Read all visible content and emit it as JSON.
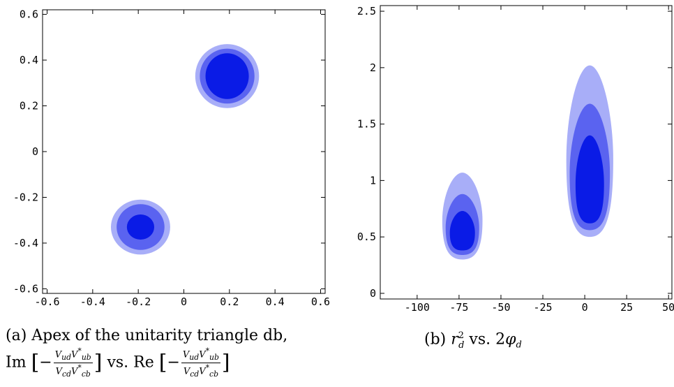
{
  "chart_data": [
    {
      "type": "heatmap",
      "panel": "a",
      "xlim": [
        -0.62,
        0.62
      ],
      "ylim": [
        -0.62,
        0.62
      ],
      "x_ticks": [
        "-0.6",
        "-0.4",
        "-0.2",
        "0",
        "0.2",
        "0.4",
        "0.6"
      ],
      "x_tick_values": [
        -0.6,
        -0.4,
        -0.2,
        0,
        0.2,
        0.4,
        0.6
      ],
      "y_ticks": [
        "-0.6",
        "-0.4",
        "-0.2",
        "0",
        "0.2",
        "0.4",
        "0.6"
      ],
      "y_tick_values": [
        -0.6,
        -0.4,
        -0.2,
        0,
        0.2,
        0.4,
        0.6
      ],
      "regions": [
        {
          "level": "outer",
          "color": "#a8aef8",
          "cx": 0.19,
          "cy": 0.33,
          "rx": 0.14,
          "ry": 0.14
        },
        {
          "level": "middle",
          "color": "#5a63f0",
          "cx": 0.19,
          "cy": 0.33,
          "rx": 0.12,
          "ry": 0.12
        },
        {
          "level": "inner",
          "color": "#0a1be6",
          "cx": 0.19,
          "cy": 0.33,
          "rx": 0.095,
          "ry": 0.1
        },
        {
          "level": "outer",
          "color": "#a8aef8",
          "cx": -0.19,
          "cy": -0.33,
          "rx": 0.13,
          "ry": 0.12
        },
        {
          "level": "middle",
          "color": "#5a63f0",
          "cx": -0.19,
          "cy": -0.33,
          "rx": 0.105,
          "ry": 0.1
        },
        {
          "level": "inner",
          "color": "#0a1be6",
          "cx": -0.19,
          "cy": -0.33,
          "rx": 0.06,
          "ry": 0.055
        }
      ],
      "grid": false
    },
    {
      "type": "heatmap",
      "panel": "b",
      "xlim": [
        -122,
        52
      ],
      "ylim": [
        -0.05,
        2.55
      ],
      "x_ticks": [
        "-100",
        "-75",
        "-50",
        "-25",
        "0",
        "25",
        "50"
      ],
      "x_tick_values": [
        -100,
        -75,
        -50,
        -25,
        0,
        25,
        50
      ],
      "y_ticks": [
        "0",
        "0.5",
        "1",
        "1.5",
        "2",
        "2.5"
      ],
      "y_tick_values": [
        0,
        0.5,
        1,
        1.5,
        2,
        2.5
      ],
      "regions": [
        {
          "level": "outer",
          "color": "#a8aef8",
          "cx": -73,
          "cy": 0.36,
          "w": 24,
          "top": 1.07,
          "bottom": 0.3
        },
        {
          "level": "middle",
          "color": "#5a63f0",
          "cx": -73,
          "cy": 0.36,
          "w": 20,
          "top": 0.88,
          "bottom": 0.34
        },
        {
          "level": "inner",
          "color": "#0a1be6",
          "cx": -73,
          "cy": 0.36,
          "w": 15,
          "top": 0.73,
          "bottom": 0.38
        },
        {
          "level": "outer",
          "color": "#a8aef8",
          "cx": 3,
          "cy": 0.6,
          "w": 28,
          "top": 2.02,
          "bottom": 0.5
        },
        {
          "level": "middle",
          "color": "#5a63f0",
          "cx": 3,
          "cy": 0.6,
          "w": 24,
          "top": 1.68,
          "bottom": 0.56
        },
        {
          "level": "inner",
          "color": "#0a1be6",
          "cx": 3,
          "cy": 0.6,
          "w": 17,
          "top": 1.4,
          "bottom": 0.62
        }
      ],
      "grid": false
    }
  ],
  "captions": {
    "a_line1": "(a) Apex of the unitarity triangle db,",
    "a_im": "Im",
    "a_vs": "vs. Re",
    "a_num": "V_{ud}V*_{ub}",
    "a_den": "V_{cd}V*_{cb}",
    "b": "(b) r_d^2 vs. 2φ_d"
  }
}
